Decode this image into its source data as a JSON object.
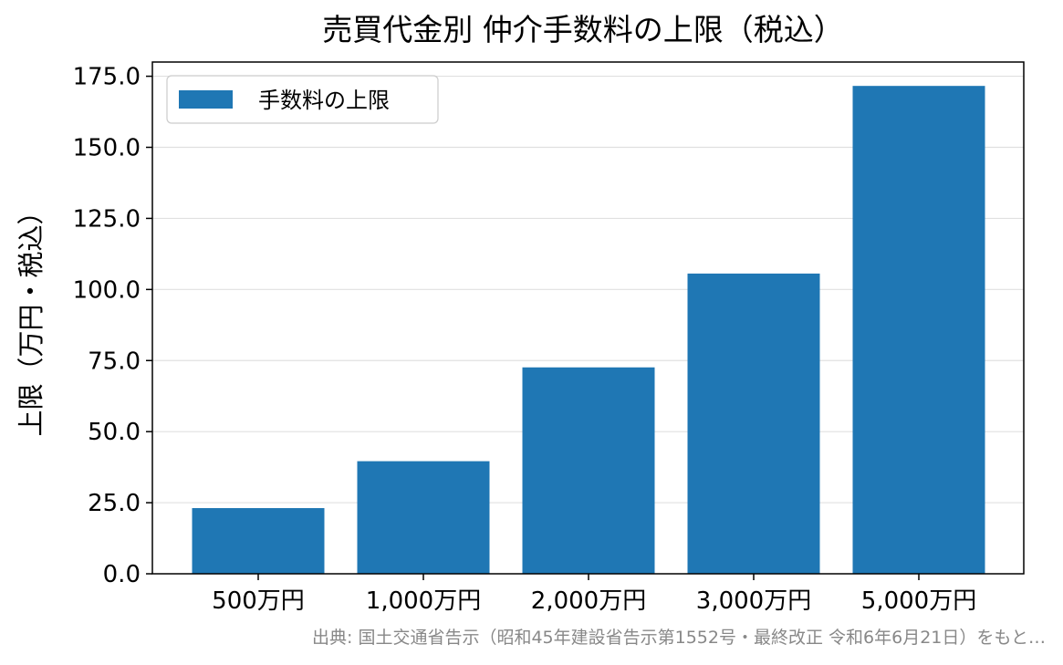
{
  "chart_data": {
    "type": "bar",
    "title": "売買代金別 仲介手数料の上限（税込）",
    "xlabel": "",
    "ylabel": "上限（万円・税込）",
    "categories": [
      "500万円",
      "1,000万円",
      "2,000万円",
      "3,000万円",
      "5,000万円"
    ],
    "series": [
      {
        "name": "手数料の上限",
        "values": [
          23.1,
          39.6,
          72.6,
          105.6,
          171.6
        ],
        "color": "#1f77b4"
      }
    ],
    "ylim": [
      0,
      180
    ],
    "yticks": [
      0.0,
      25.0,
      50.0,
      75.0,
      100.0,
      125.0,
      150.0,
      175.0
    ],
    "ytick_labels": [
      "0.0",
      "25.0",
      "50.0",
      "75.0",
      "100.0",
      "125.0",
      "150.0",
      "175.0"
    ],
    "grid": "horizontal",
    "legend_position": "top-left"
  },
  "source_note": "出典: 国土交通省告示（昭和45年建設省告示第1552号・最終改正 令和6年6月21日）をもと…"
}
